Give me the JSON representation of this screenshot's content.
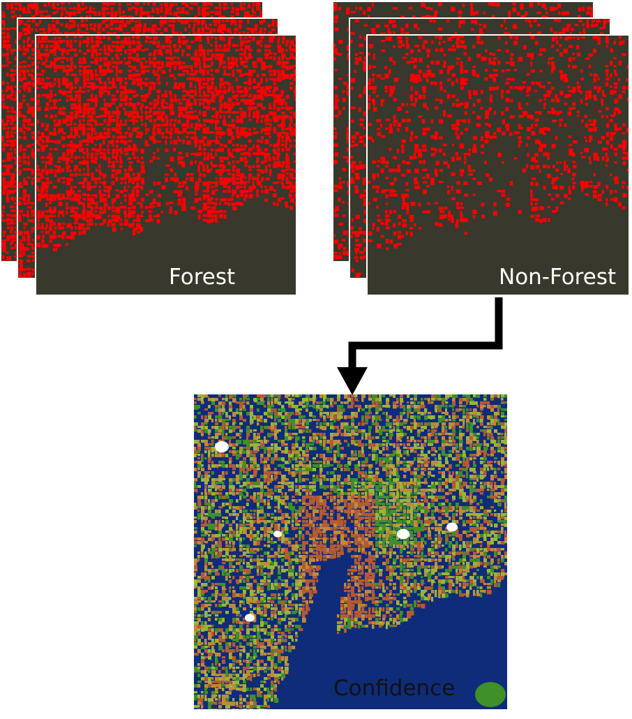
{
  "forest_stack": {
    "label": "Forest",
    "layer_count": 3,
    "density": 0.72,
    "colors": {
      "signal": "#ff0000",
      "background": "#38382c"
    }
  },
  "nonforest_stack": {
    "label": "Non-Forest",
    "layer_count": 3,
    "density": 0.32,
    "colors": {
      "signal": "#ff0000",
      "background": "#38382c"
    }
  },
  "confidence_map": {
    "label": "Confidence",
    "colors": {
      "high": "#0f2c7a",
      "medium_high": "#3f8f2a",
      "medium": "#9bb538",
      "medium_low": "#c08a3a",
      "low": "#b45a34",
      "water": "#ffffff"
    }
  },
  "arrow": {
    "color": "#000000"
  }
}
